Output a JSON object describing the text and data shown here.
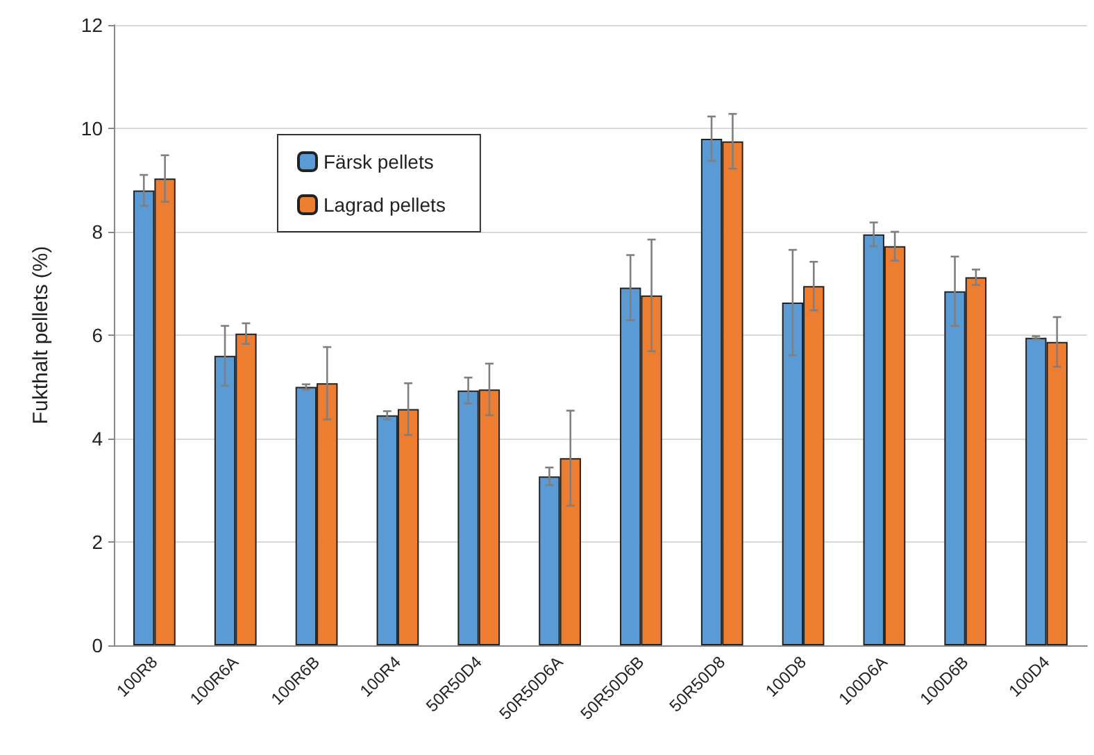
{
  "chart_data": {
    "type": "bar",
    "ylabel": "Fukthalt pellets (%)",
    "categories": [
      "100R8",
      "100R6A",
      "100R6B",
      "100R4",
      "50R50D4",
      "50R50D6A",
      "50R50D6B",
      "50R50D8",
      "100D8",
      "100D6A",
      "100D6B",
      "100D4"
    ],
    "series": [
      {
        "name": "Färsk pellets",
        "color": "#5b9bd5",
        "values": [
          8.8,
          5.6,
          5.0,
          4.45,
          4.93,
          3.27,
          6.92,
          9.8,
          6.63,
          7.95,
          6.85,
          5.95
        ],
        "errors": [
          0.3,
          0.58,
          0.05,
          0.08,
          0.25,
          0.17,
          0.63,
          0.43,
          1.02,
          0.23,
          0.67,
          0.03
        ]
      },
      {
        "name": "Lagrad pellets",
        "color": "#ed7d31",
        "values": [
          9.03,
          6.03,
          5.07,
          4.57,
          4.95,
          3.62,
          6.77,
          9.75,
          6.95,
          7.72,
          7.12,
          5.87
        ],
        "errors": [
          0.45,
          0.2,
          0.7,
          0.5,
          0.5,
          0.92,
          1.08,
          0.53,
          0.47,
          0.28,
          0.15,
          0.48
        ]
      }
    ],
    "ylim": [
      0,
      12
    ],
    "yticks": [
      0,
      2,
      4,
      6,
      8,
      10,
      12
    ],
    "grid": "y",
    "legend": "top left"
  }
}
